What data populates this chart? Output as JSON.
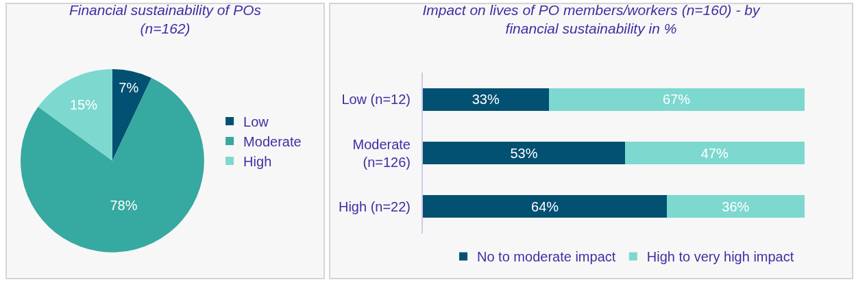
{
  "chart_data": [
    {
      "type": "pie",
      "title": "Financial sustainability of POs (n=162)",
      "categories": [
        "Low",
        "Moderate",
        "High"
      ],
      "values": [
        7,
        78,
        15
      ],
      "value_labels": [
        "7%",
        "78%",
        "15%"
      ],
      "colors": [
        "#025072",
        "#36a9a0",
        "#7dd8cf"
      ],
      "legend": "right"
    },
    {
      "type": "bar",
      "orientation": "horizontal",
      "stacked": true,
      "title": "Impact on lives of PO members/workers (n=160) - by financial sustainability in %",
      "categories": [
        "Low (n=12)",
        "Moderate (n=126)",
        "High (n=22)"
      ],
      "tick_labels": "y",
      "grid": false,
      "legend": "bottom",
      "series": [
        {
          "name": "No to moderate impact",
          "color": "#025072",
          "values": [
            33,
            53,
            64
          ],
          "value_labels": [
            "33%",
            "53%",
            "64%"
          ]
        },
        {
          "name": "High to very high impact",
          "color": "#7dd8cf",
          "values": [
            67,
            47,
            36
          ],
          "value_labels": [
            "67%",
            "47%",
            "36%"
          ]
        }
      ]
    }
  ]
}
